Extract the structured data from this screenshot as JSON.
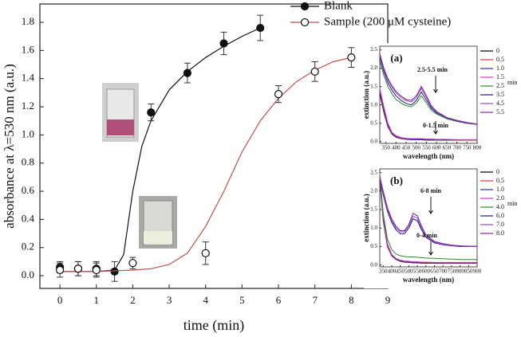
{
  "chart_data": [
    {
      "type": "scatter",
      "x_label": "time (min)",
      "y_label": "absorbance at λ=530 nm (a.u.)",
      "xlim": [
        -0.55,
        9
      ],
      "xticks": [
        0,
        1,
        2,
        3,
        4,
        5,
        6,
        7,
        8,
        9
      ],
      "ylim": [
        -0.09,
        1.93
      ],
      "yticks": [
        {
          "value": 0,
          "label": "0.0"
        },
        {
          "value": 0.2,
          "label": "0.2"
        },
        {
          "value": 0.4,
          "label": "0.4"
        },
        {
          "value": 0.6,
          "label": "0.6"
        },
        {
          "value": 0.8,
          "label": "0.8"
        },
        {
          "value": 1.0,
          "label": "1.0"
        },
        {
          "value": 1.2,
          "label": "1.2"
        },
        {
          "value": 1.4,
          "label": "1.4"
        },
        {
          "value": 1.6,
          "label": "1.6"
        },
        {
          "value": 1.8,
          "label": "1.8"
        }
      ],
      "series": [
        {
          "name": "Blank",
          "color": "#111111",
          "line_color": "#111111",
          "filled": true,
          "x": [
            0,
            0.5,
            1,
            1.5,
            2.5,
            3.5,
            4.5,
            5.5
          ],
          "values": [
            0.06,
            0.05,
            0.05,
            0.03,
            1.16,
            1.44,
            1.65,
            1.76
          ],
          "errors": [
            0.04,
            0.05,
            0.05,
            0.07,
            0.06,
            0.07,
            0.08,
            0.09
          ],
          "fit": {
            "x": [
              0,
              1,
              1.5,
              1.75,
              2,
              2.25,
              2.5,
              3,
              3.5,
              4,
              4.5,
              5,
              5.5
            ],
            "values": [
              0.03,
              0.03,
              0.04,
              0.15,
              0.6,
              0.92,
              1.1,
              1.32,
              1.45,
              1.55,
              1.63,
              1.7,
              1.76
            ]
          }
        },
        {
          "name": "Sample (200 μM cysteine)",
          "color": "#111111",
          "line_color": "#c0504d",
          "filled": false,
          "x": [
            0,
            0.5,
            1,
            2,
            4,
            6,
            7,
            8
          ],
          "values": [
            0.04,
            0.05,
            0.04,
            0.09,
            0.16,
            1.29,
            1.45,
            1.55
          ],
          "errors": [
            0.05,
            0.05,
            0.05,
            0.04,
            0.08,
            0.06,
            0.07,
            0.07
          ],
          "fit": {
            "x": [
              0,
              1,
              2,
              2.5,
              3,
              3.5,
              4,
              4.5,
              5,
              5.5,
              6,
              6.5,
              7,
              7.5,
              8
            ],
            "values": [
              0.03,
              0.03,
              0.04,
              0.05,
              0.08,
              0.16,
              0.35,
              0.6,
              0.88,
              1.1,
              1.26,
              1.38,
              1.46,
              1.52,
              1.55
            ]
          }
        }
      ]
    },
    {
      "type": "line",
      "panel_label": "(a)",
      "x_label": "wavelength (nm)",
      "y_label": "extinction (a.u.)",
      "legend_unit": "min",
      "annotations": [
        "2.5-5.5 min",
        "0-1.5 min"
      ],
      "x": [
        320,
        340,
        360,
        380,
        400,
        425,
        450,
        475,
        500,
        525,
        550,
        575,
        600,
        650,
        700,
        750,
        800
      ],
      "xlim": [
        320,
        800
      ],
      "xticks": [
        350,
        400,
        450,
        500,
        550,
        600,
        650,
        700,
        750,
        800
      ],
      "ylim": [
        -0.05,
        2.6
      ],
      "yticks": [
        {
          "value": 0,
          "label": "0.0"
        },
        {
          "value": 0.5,
          "label": "0.5"
        },
        {
          "value": 1.0,
          "label": "1.0"
        },
        {
          "value": 1.5,
          "label": "1.5"
        },
        {
          "value": 2.0,
          "label": "2.0"
        },
        {
          "value": 2.5,
          "label": "2.5"
        }
      ],
      "series": [
        {
          "name": "0",
          "color": "#000000",
          "values": [
            1.3,
            0.8,
            0.4,
            0.2,
            0.12,
            0.08,
            0.06,
            0.05,
            0.05,
            0.05,
            0.04,
            0.04,
            0.04,
            0.04,
            0.04,
            0.04,
            0.04
          ]
        },
        {
          "name": "0.5",
          "color": "#e0303a",
          "values": [
            1.35,
            0.85,
            0.42,
            0.21,
            0.13,
            0.09,
            0.07,
            0.06,
            0.06,
            0.06,
            0.05,
            0.05,
            0.05,
            0.05,
            0.04,
            0.04,
            0.04
          ]
        },
        {
          "name": "1.0",
          "color": "#2030d0",
          "values": [
            1.4,
            0.9,
            0.45,
            0.23,
            0.14,
            0.1,
            0.08,
            0.07,
            0.07,
            0.07,
            0.06,
            0.06,
            0.05,
            0.05,
            0.05,
            0.05,
            0.05
          ]
        },
        {
          "name": "1.5",
          "color": "#c040c0",
          "values": [
            1.45,
            0.95,
            0.5,
            0.25,
            0.16,
            0.11,
            0.09,
            0.08,
            0.08,
            0.08,
            0.07,
            0.07,
            0.06,
            0.06,
            0.05,
            0.05,
            0.05
          ]
        },
        {
          "name": "2.5",
          "color": "#2a8a2a",
          "values": [
            2.2,
            1.8,
            1.5,
            1.3,
            1.15,
            1.05,
            0.98,
            0.95,
            1.05,
            1.25,
            1.05,
            0.85,
            0.75,
            0.62,
            0.55,
            0.5,
            0.47
          ]
        },
        {
          "name": "3.5",
          "color": "#1a1a80",
          "values": [
            2.3,
            1.9,
            1.6,
            1.4,
            1.25,
            1.12,
            1.04,
            1.0,
            1.12,
            1.35,
            1.13,
            0.9,
            0.78,
            0.64,
            0.56,
            0.5,
            0.47
          ]
        },
        {
          "name": "4.5",
          "color": "#9a4ad8",
          "values": [
            2.35,
            1.95,
            1.68,
            1.48,
            1.33,
            1.2,
            1.12,
            1.08,
            1.2,
            1.45,
            1.2,
            0.94,
            0.8,
            0.65,
            0.57,
            0.51,
            0.47
          ]
        },
        {
          "name": "5.5",
          "color": "#7a2a90",
          "values": [
            2.4,
            2.0,
            1.72,
            1.52,
            1.37,
            1.24,
            1.15,
            1.12,
            1.25,
            1.5,
            1.25,
            0.97,
            0.82,
            0.66,
            0.58,
            0.52,
            0.48
          ]
        }
      ]
    },
    {
      "type": "line",
      "panel_label": "(b)",
      "x_label": "wavelength (nm)",
      "y_label": "extinction (a.u.)",
      "legend_unit": "min",
      "annotations": [
        "6-8 min",
        "0-4 min"
      ],
      "x": [
        330,
        350,
        375,
        400,
        425,
        450,
        475,
        500,
        525,
        550,
        575,
        600,
        650,
        700,
        750,
        800,
        850,
        900
      ],
      "xlim": [
        330,
        900
      ],
      "xticks": [
        350,
        400,
        450,
        500,
        550,
        600,
        650,
        700,
        750,
        800,
        850,
        900
      ],
      "ylim": [
        -0.05,
        2.6
      ],
      "yticks": [
        {
          "value": 0,
          "label": "0.0"
        },
        {
          "value": 0.5,
          "label": "0.5"
        },
        {
          "value": 1.0,
          "label": "1.0"
        },
        {
          "value": 1.5,
          "label": "1.5"
        },
        {
          "value": 2.0,
          "label": "2.0"
        },
        {
          "value": 2.5,
          "label": "2.5"
        }
      ],
      "series": [
        {
          "name": "0",
          "color": "#000000",
          "values": [
            2.3,
            1.2,
            0.5,
            0.25,
            0.15,
            0.1,
            0.08,
            0.07,
            0.06,
            0.06,
            0.05,
            0.05,
            0.05,
            0.05,
            0.05,
            0.05,
            0.05,
            0.05
          ]
        },
        {
          "name": "0.5",
          "color": "#e0303a",
          "values": [
            2.35,
            1.25,
            0.52,
            0.26,
            0.16,
            0.11,
            0.09,
            0.08,
            0.07,
            0.07,
            0.06,
            0.06,
            0.06,
            0.05,
            0.05,
            0.05,
            0.05,
            0.05
          ]
        },
        {
          "name": "1.0",
          "color": "#2030d0",
          "values": [
            2.4,
            1.3,
            0.55,
            0.28,
            0.17,
            0.12,
            0.1,
            0.09,
            0.08,
            0.08,
            0.07,
            0.07,
            0.06,
            0.06,
            0.06,
            0.06,
            0.06,
            0.06
          ]
        },
        {
          "name": "2.0",
          "color": "#c040c0",
          "values": [
            2.42,
            1.32,
            0.57,
            0.29,
            0.18,
            0.13,
            0.11,
            0.1,
            0.09,
            0.09,
            0.08,
            0.08,
            0.07,
            0.07,
            0.07,
            0.07,
            0.07,
            0.07
          ]
        },
        {
          "name": "4.0",
          "color": "#2a8a2a",
          "values": [
            2.45,
            1.4,
            0.7,
            0.42,
            0.3,
            0.25,
            0.23,
            0.22,
            0.22,
            0.21,
            0.2,
            0.19,
            0.18,
            0.17,
            0.16,
            0.15,
            0.15,
            0.15
          ]
        },
        {
          "name": "6.0",
          "color": "#1a1a80",
          "values": [
            2.3,
            1.9,
            1.45,
            1.15,
            0.95,
            0.85,
            0.85,
            1.0,
            1.25,
            1.2,
            0.95,
            0.75,
            0.6,
            0.55,
            0.52,
            0.5,
            0.5,
            0.5
          ]
        },
        {
          "name": "7.0",
          "color": "#9a4ad8",
          "values": [
            2.35,
            1.95,
            1.5,
            1.2,
            1.0,
            0.9,
            0.9,
            1.05,
            1.32,
            1.27,
            1.0,
            0.78,
            0.62,
            0.56,
            0.53,
            0.51,
            0.5,
            0.5
          ]
        },
        {
          "name": "8.0",
          "color": "#7a2a90",
          "values": [
            2.4,
            2.0,
            1.55,
            1.25,
            1.05,
            0.93,
            0.93,
            1.1,
            1.4,
            1.33,
            1.05,
            0.82,
            0.64,
            0.58,
            0.54,
            0.52,
            0.51,
            0.51
          ]
        }
      ]
    }
  ]
}
